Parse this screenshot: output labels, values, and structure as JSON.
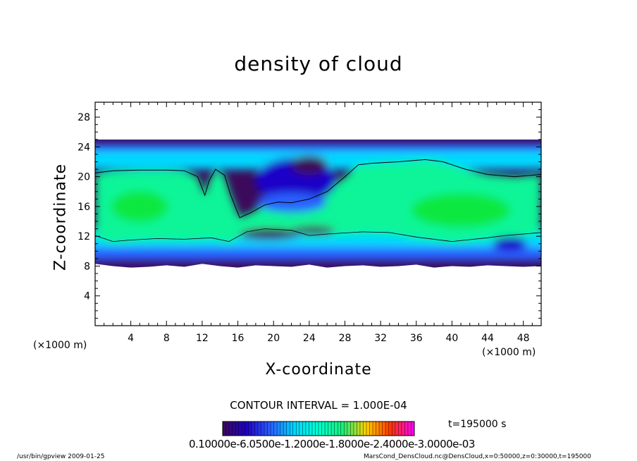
{
  "chart_data": {
    "type": "heatmap",
    "title": "density of cloud",
    "xlabel": "X-coordinate",
    "ylabel": "Z-coordinate",
    "x_unit_left": "(×1000 m)",
    "x_unit_right": "(×1000 m)",
    "xlim": [
      0,
      50
    ],
    "ylim": [
      0,
      30
    ],
    "x_ticks": [
      "4",
      "8",
      "12",
      "16",
      "20",
      "24",
      "28",
      "32",
      "36",
      "40",
      "44",
      "48"
    ],
    "y_ticks": [
      "4",
      "8",
      "12",
      "16",
      "20",
      "24",
      "28"
    ],
    "contour_interval": "CONTOUR INTERVAL = 1.000E-04",
    "time_label": "t=195000 s",
    "colorbar_ticks": "0.10000e-6.0500e-1.2000e-1.8000e-2.4000e-3.0000e-03",
    "colormap": [
      "#3c0a5a",
      "#1e00c8",
      "#2a60ff",
      "#00d8ff",
      "#00ffd0",
      "#18f07a",
      "#ffd000",
      "#ff3800",
      "#ff00ff"
    ],
    "cloud_layer": {
      "z_bottom_edge": [
        8.3,
        8.0,
        7.8,
        7.9,
        8.1,
        7.9,
        8.3,
        8.0,
        7.8,
        8.1,
        8.0,
        7.9,
        8.2,
        7.8,
        8.0,
        8.1,
        7.9,
        8.0,
        8.2,
        7.8,
        8.0,
        7.9,
        8.1,
        8.0,
        7.9,
        8.0
      ],
      "z_top": 25,
      "contour": [
        [
          0,
          20.5
        ],
        [
          2,
          20.8
        ],
        [
          5,
          20.9
        ],
        [
          8,
          20.9
        ],
        [
          10,
          20.8
        ],
        [
          11.5,
          20.0
        ],
        [
          12.3,
          17.5
        ],
        [
          12.8,
          19.5
        ],
        [
          13.5,
          21.0
        ],
        [
          14.5,
          20.2
        ],
        [
          15.2,
          17.5
        ],
        [
          16.2,
          14.5
        ],
        [
          17.5,
          15.2
        ],
        [
          19,
          16.2
        ],
        [
          20.5,
          16.6
        ],
        [
          22,
          16.5
        ],
        [
          24,
          17.0
        ],
        [
          26,
          18.0
        ],
        [
          28,
          20.0
        ],
        [
          29.5,
          21.6
        ],
        [
          31,
          21.8
        ],
        [
          34,
          22.0
        ],
        [
          37,
          22.3
        ],
        [
          39,
          22.0
        ],
        [
          41.5,
          21.0
        ],
        [
          44,
          20.3
        ],
        [
          47,
          20.0
        ],
        [
          50,
          20.3
        ]
      ]
    }
  },
  "footer": {
    "left": "/usr/bin/gpview   2009-01-25",
    "right": "MarsCond_DensCloud.nc@DensCloud,x=0:50000,z=0:30000,t=195000"
  }
}
